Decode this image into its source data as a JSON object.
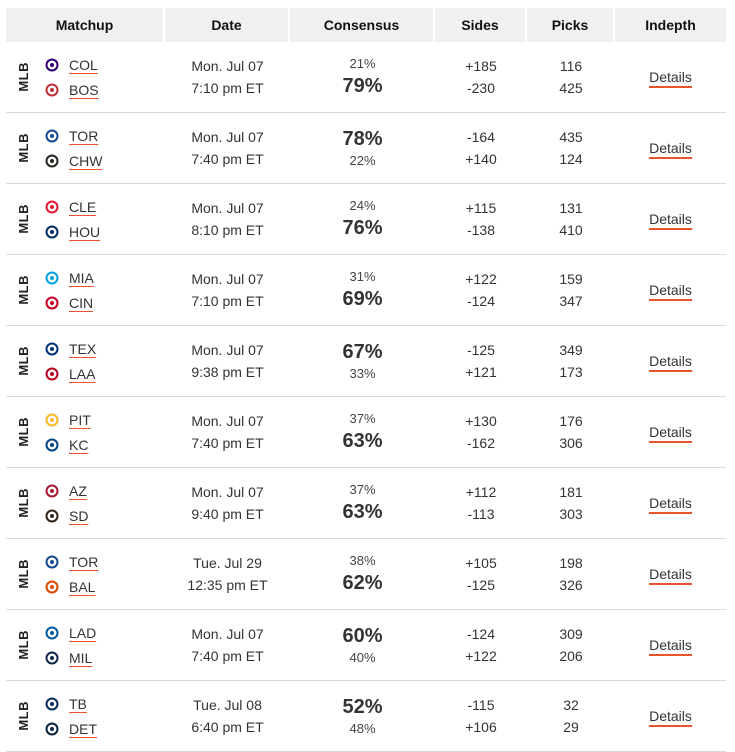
{
  "headers": [
    "Matchup",
    "Date",
    "Consensus",
    "Sides",
    "Picks",
    "Indepth"
  ],
  "league": "MLB",
  "details_label": "Details",
  "accent_color": "#e8542c",
  "games": [
    {
      "away": {
        "abbr": "COL",
        "logo": "rockies-logo",
        "color": "#33006f"
      },
      "home": {
        "abbr": "BOS",
        "logo": "red-sox-logo",
        "color": "#bd3039"
      },
      "date": "Mon. Jul 07",
      "time": "7:10 pm ET",
      "consensus_away": "21%",
      "consensus_home": "79%",
      "favored": "home",
      "side_away": "+185",
      "side_home": "-230",
      "picks_away": "116",
      "picks_home": "425"
    },
    {
      "away": {
        "abbr": "TOR",
        "logo": "blue-jays-logo",
        "color": "#134a8e"
      },
      "home": {
        "abbr": "CHW",
        "logo": "white-sox-logo",
        "color": "#27251f"
      },
      "date": "Mon. Jul 07",
      "time": "7:40 pm ET",
      "consensus_away": "78%",
      "consensus_home": "22%",
      "favored": "away",
      "side_away": "-164",
      "side_home": "+140",
      "picks_away": "435",
      "picks_home": "124"
    },
    {
      "away": {
        "abbr": "CLE",
        "logo": "guardians-logo",
        "color": "#e31937"
      },
      "home": {
        "abbr": "HOU",
        "logo": "astros-logo",
        "color": "#002d62"
      },
      "date": "Mon. Jul 07",
      "time": "8:10 pm ET",
      "consensus_away": "24%",
      "consensus_home": "76%",
      "favored": "home",
      "side_away": "+115",
      "side_home": "-138",
      "picks_away": "131",
      "picks_home": "410"
    },
    {
      "away": {
        "abbr": "MIA",
        "logo": "marlins-logo",
        "color": "#00a3e0"
      },
      "home": {
        "abbr": "CIN",
        "logo": "reds-logo",
        "color": "#c6011f"
      },
      "date": "Mon. Jul 07",
      "time": "7:10 pm ET",
      "consensus_away": "31%",
      "consensus_home": "69%",
      "favored": "home",
      "side_away": "+122",
      "side_home": "-124",
      "picks_away": "159",
      "picks_home": "347"
    },
    {
      "away": {
        "abbr": "TEX",
        "logo": "rangers-logo",
        "color": "#003278"
      },
      "home": {
        "abbr": "LAA",
        "logo": "angels-logo",
        "color": "#ba0021"
      },
      "date": "Mon. Jul 07",
      "time": "9:38 pm ET",
      "consensus_away": "67%",
      "consensus_home": "33%",
      "favored": "away",
      "side_away": "-125",
      "side_home": "+121",
      "picks_away": "349",
      "picks_home": "173"
    },
    {
      "away": {
        "abbr": "PIT",
        "logo": "pirates-logo",
        "color": "#fdb827"
      },
      "home": {
        "abbr": "KC",
        "logo": "royals-logo",
        "color": "#004687"
      },
      "date": "Mon. Jul 07",
      "time": "7:40 pm ET",
      "consensus_away": "37%",
      "consensus_home": "63%",
      "favored": "home",
      "side_away": "+130",
      "side_home": "-162",
      "picks_away": "176",
      "picks_home": "306"
    },
    {
      "away": {
        "abbr": "AZ",
        "logo": "diamondbacks-logo",
        "color": "#a71930"
      },
      "home": {
        "abbr": "SD",
        "logo": "padres-logo",
        "color": "#2f241d"
      },
      "date": "Mon. Jul 07",
      "time": "9:40 pm ET",
      "consensus_away": "37%",
      "consensus_home": "63%",
      "favored": "home",
      "side_away": "+112",
      "side_home": "-113",
      "picks_away": "181",
      "picks_home": "303"
    },
    {
      "away": {
        "abbr": "TOR",
        "logo": "blue-jays-logo",
        "color": "#134a8e"
      },
      "home": {
        "abbr": "BAL",
        "logo": "orioles-logo",
        "color": "#df4601"
      },
      "date": "Tue. Jul 29",
      "time": "12:35 pm ET",
      "consensus_away": "38%",
      "consensus_home": "62%",
      "favored": "home",
      "side_away": "+105",
      "side_home": "-125",
      "picks_away": "198",
      "picks_home": "326"
    },
    {
      "away": {
        "abbr": "LAD",
        "logo": "dodgers-logo",
        "color": "#005a9c"
      },
      "home": {
        "abbr": "MIL",
        "logo": "brewers-logo",
        "color": "#12284b"
      },
      "date": "Mon. Jul 07",
      "time": "7:40 pm ET",
      "consensus_away": "60%",
      "consensus_home": "40%",
      "favored": "away",
      "side_away": "-124",
      "side_home": "+122",
      "picks_away": "309",
      "picks_home": "206"
    },
    {
      "away": {
        "abbr": "TB",
        "logo": "rays-logo",
        "color": "#092c5c"
      },
      "home": {
        "abbr": "DET",
        "logo": "tigers-logo",
        "color": "#0c2340"
      },
      "date": "Tue. Jul 08",
      "time": "6:40 pm ET",
      "consensus_away": "52%",
      "consensus_home": "48%",
      "favored": "away",
      "side_away": "-115",
      "side_home": "+106",
      "picks_away": "32",
      "picks_home": "29"
    }
  ]
}
